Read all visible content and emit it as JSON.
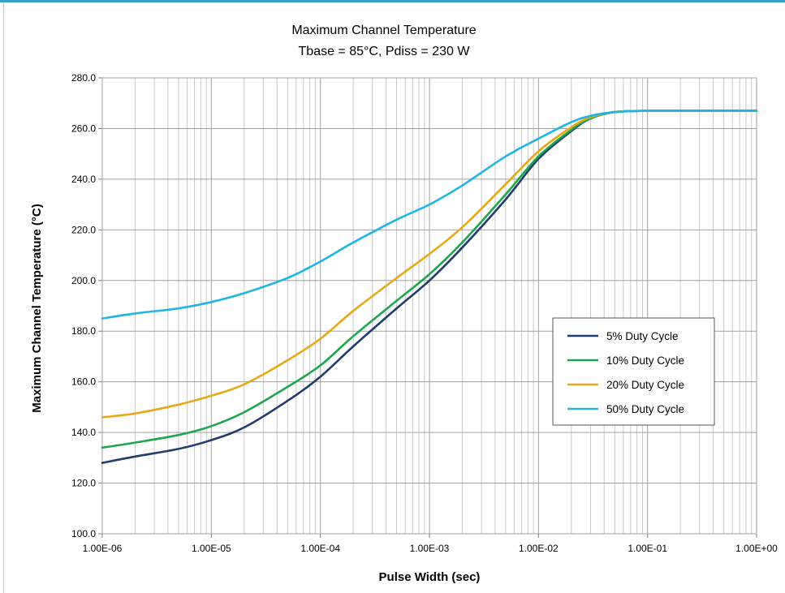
{
  "chart_data": {
    "type": "line",
    "title": "Maximum Channel Temperature",
    "subtitle": "Tbase = 85°C, Pdiss = 230 W",
    "xlabel": "Pulse Width (sec)",
    "ylabel": "Maximum Channel Temperature (°C)",
    "x_scale": "log",
    "xlim": [
      1e-06,
      1
    ],
    "ylim": [
      100,
      280
    ],
    "y_ticks": [
      100,
      120,
      140,
      160,
      180,
      200,
      220,
      240,
      260,
      280
    ],
    "y_tick_labels": [
      "100.0",
      "120.0",
      "140.0",
      "160.0",
      "180.0",
      "200.0",
      "220.0",
      "240.0",
      "260.0",
      "280.0"
    ],
    "x_ticks": [
      1e-06,
      1e-05,
      0.0001,
      0.001,
      0.01,
      0.1,
      1
    ],
    "x_tick_labels": [
      "1.00E-06",
      "1.00E-05",
      "1.00E-04",
      "1.00E-03",
      "1.00E-02",
      "1.00E-01",
      "1.00E+00"
    ],
    "grid": true,
    "legend_position": "right",
    "x": [
      1e-06,
      2e-06,
      5e-06,
      1e-05,
      2e-05,
      5e-05,
      0.0001,
      0.0002,
      0.0005,
      0.001,
      0.002,
      0.005,
      0.01,
      0.02,
      0.03,
      0.05,
      0.1,
      0.2,
      0.5,
      1
    ],
    "series": [
      {
        "name": "5% Duty Cycle",
        "color": "#1f3d6e",
        "values": [
          128,
          130.5,
          133.5,
          137,
          142,
          152.5,
          162,
          174,
          189,
          200,
          213,
          232,
          248,
          259,
          264,
          266.5,
          267,
          267,
          267,
          267
        ]
      },
      {
        "name": "10% Duty Cycle",
        "color": "#1ea64b",
        "values": [
          134,
          136,
          139,
          142.5,
          148,
          158,
          166.5,
          178,
          192,
          202.5,
          215,
          234,
          249,
          259.5,
          264,
          266.5,
          267,
          267,
          267,
          267
        ]
      },
      {
        "name": "20% Duty Cycle",
        "color": "#e6a817",
        "values": [
          146,
          147.5,
          151,
          154.5,
          159,
          168.5,
          177,
          188,
          201,
          210.5,
          221,
          238,
          251,
          260.5,
          264.5,
          266.5,
          267,
          267,
          267,
          267
        ]
      },
      {
        "name": "50% Duty Cycle",
        "color": "#1fb4e6",
        "values": [
          185,
          187,
          189,
          191.5,
          195,
          201,
          207.5,
          215,
          224,
          230,
          237.5,
          249,
          256,
          262.5,
          265,
          266.5,
          267,
          267,
          267,
          267
        ]
      }
    ]
  }
}
